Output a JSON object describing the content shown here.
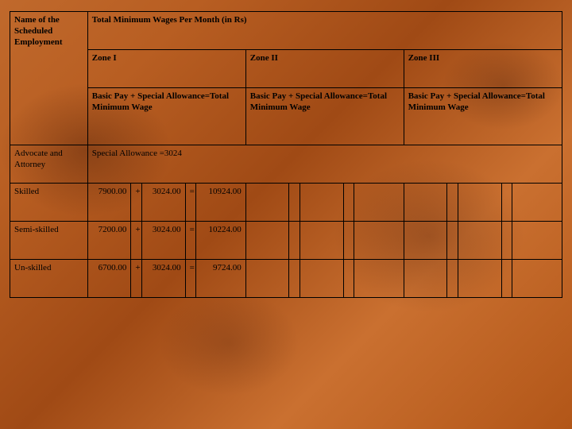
{
  "table": {
    "colors": {
      "border": "#000000",
      "text": "#000000"
    },
    "font": {
      "family": "Times New Roman",
      "size_pt": 11,
      "header_weight": "bold"
    },
    "header": {
      "row_label": "Name of the Scheduled Employment",
      "main": "Total Minimum Wages Per Month (in Rs)",
      "zones": {
        "z1": "Zone I",
        "z2": "Zone II",
        "z3": "Zone III"
      },
      "formula": {
        "z1": "Basic Pay + Special Allowance=Total Minimum Wage",
        "z2": "Basic Pay + Special Allowance=Total Minimum Wage",
        "z3": "Basic Pay + Special Allowance=Total Minimum Wage"
      }
    },
    "allowance_row": {
      "label": "Advocate and Attorney",
      "text": "Special Allowance =3024"
    },
    "rows": [
      {
        "label": "Skilled",
        "z1": {
          "basic": "7900.00",
          "plus": "+",
          "allow": "3024.00",
          "eq": "=",
          "total": "10924.00"
        },
        "z2": {
          "basic": "",
          "plus": "",
          "allow": "",
          "eq": "",
          "total": ""
        },
        "z3": {
          "basic": "",
          "plus": "",
          "allow": "",
          "eq": "",
          "total": ""
        }
      },
      {
        "label": "Semi-skilled",
        "z1": {
          "basic": "7200.00",
          "plus": "+",
          "allow": "3024.00",
          "eq": "=",
          "total": "10224.00"
        },
        "z2": {
          "basic": "",
          "plus": "",
          "allow": "",
          "eq": "",
          "total": ""
        },
        "z3": {
          "basic": "",
          "plus": "",
          "allow": "",
          "eq": "",
          "total": ""
        }
      },
      {
        "label": "Un-skilled",
        "z1": {
          "basic": "6700.00",
          "plus": "+",
          "allow": "3024.00",
          "eq": "=",
          "total": "9724.00"
        },
        "z2": {
          "basic": "",
          "plus": "",
          "allow": "",
          "eq": "",
          "total": ""
        },
        "z3": {
          "basic": "",
          "plus": "",
          "allow": "",
          "eq": "",
          "total": ""
        }
      }
    ]
  }
}
